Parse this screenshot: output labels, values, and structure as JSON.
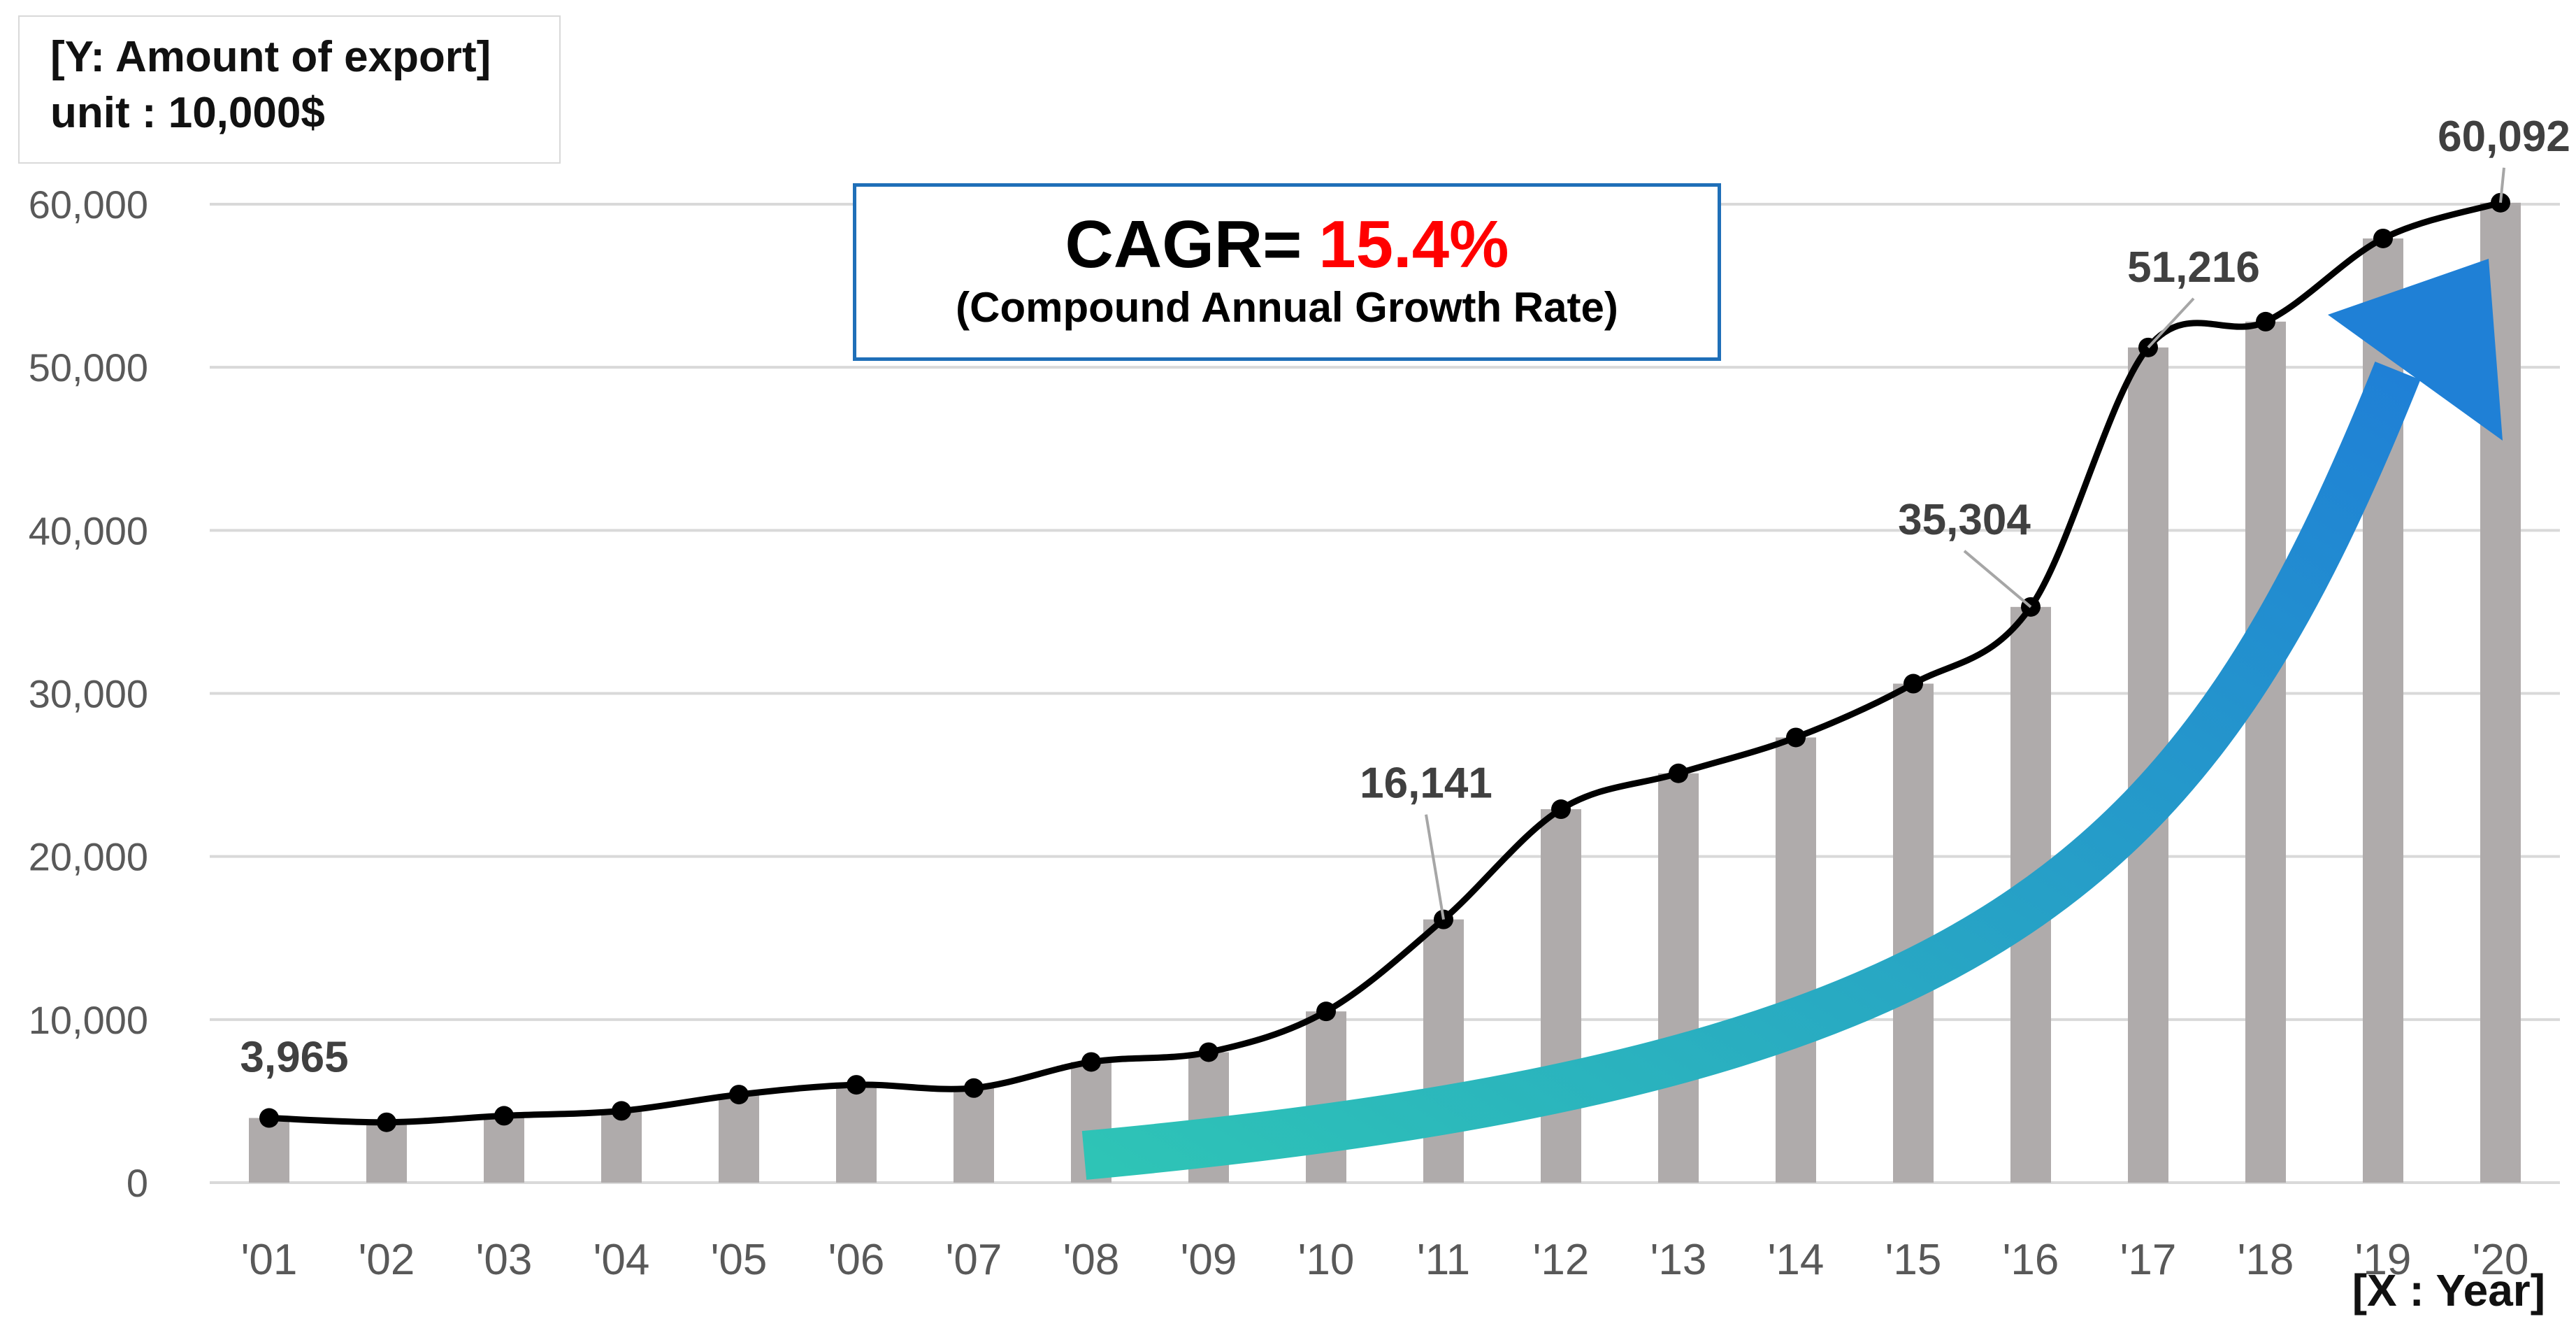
{
  "chart_data": {
    "type": "bar",
    "combo_line": true,
    "y_axis_title": "[Y: Amount of export]",
    "y_axis_unit": "unit : 10,000$",
    "x_axis_title": "[X : Year]",
    "categories": [
      "'01",
      "'02",
      "'03",
      "'04",
      "'05",
      "'06",
      "'07",
      "'08",
      "'09",
      "'10",
      "'11",
      "'12",
      "'13",
      "'14",
      "'15",
      "'16",
      "'17",
      "'18",
      "'19",
      "'20"
    ],
    "values": [
      3965,
      3700,
      4100,
      4400,
      5400,
      6000,
      5800,
      7400,
      8000,
      10500,
      16141,
      22900,
      25100,
      27300,
      30600,
      35304,
      51216,
      52800,
      57900,
      60092
    ],
    "ylim": [
      0,
      60000
    ],
    "yticks": [
      0,
      10000,
      20000,
      30000,
      40000,
      50000,
      60000
    ],
    "ytick_labels": [
      "0",
      "10,000",
      "20,000",
      "30,000",
      "40,000",
      "50,000",
      "60,000"
    ],
    "grid": true,
    "data_labels": [
      {
        "index": 0,
        "text": "3,965"
      },
      {
        "index": 10,
        "text": "16,141"
      },
      {
        "index": 15,
        "text": "35,304"
      },
      {
        "index": 16,
        "text": "51,216"
      },
      {
        "index": 19,
        "text": "60,092"
      }
    ],
    "bar_color": "#afabab",
    "line_color": "#000000",
    "trend_arrow": {
      "from_index": 7,
      "to_index": 19,
      "colors": [
        "#2ec4b6",
        "#1f80d6"
      ]
    }
  },
  "cagr": {
    "label": "CAGR=",
    "value": "15.4%",
    "description": "(Compound Annual Growth Rate)",
    "value_color": "#ff0000",
    "border_color": "#1f6fb8"
  }
}
